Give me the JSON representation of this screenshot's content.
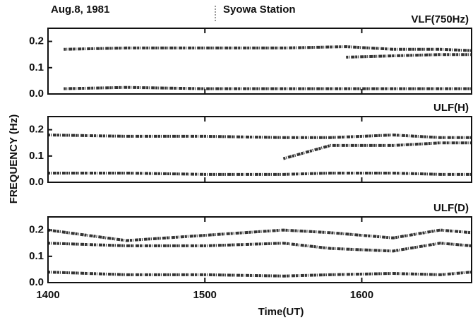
{
  "header": {
    "date": "Aug.8, 1981",
    "station": "Syowa Station"
  },
  "ylabel": "FREQUENCY (Hz)",
  "chart_data": [
    {
      "type": "line",
      "label": "VLF(750Hz)",
      "xlim": [
        1400,
        1670
      ],
      "xticks": [
        1400,
        1500,
        1600
      ],
      "ylim": [
        0,
        0.25
      ],
      "yticks": [
        {
          "value": 0,
          "label": "0.0"
        },
        {
          "value": 0.1,
          "label": "0.1"
        },
        {
          "value": 0.2,
          "label": "0.2"
        }
      ],
      "x": [
        1410,
        1450,
        1500,
        1550,
        1590,
        1620,
        1650,
        1670
      ],
      "series": [
        {
          "color": "#111111",
          "values": [
            0.17,
            0.175,
            0.175,
            0.175,
            0.18,
            0.17,
            0.17,
            0.165
          ]
        },
        {
          "color": "#111111",
          "values": [
            null,
            null,
            null,
            null,
            0.14,
            0.145,
            0.15,
            0.15
          ]
        },
        {
          "color": "#111111",
          "values": [
            0.02,
            0.025,
            0.02,
            0.02,
            0.02,
            0.02,
            0.02,
            0.02
          ]
        }
      ]
    },
    {
      "type": "line",
      "label": "ULF(H)",
      "xlim": [
        1400,
        1670
      ],
      "xticks": [
        1400,
        1500,
        1600
      ],
      "ylim": [
        0,
        0.25
      ],
      "yticks": [
        {
          "value": 0,
          "label": "0.0"
        },
        {
          "value": 0.1,
          "label": "0.1"
        },
        {
          "value": 0.2,
          "label": "0.2"
        }
      ],
      "x": [
        1400,
        1450,
        1500,
        1550,
        1580,
        1620,
        1650,
        1670
      ],
      "series": [
        {
          "color": "#111111",
          "values": [
            0.18,
            0.175,
            0.175,
            0.17,
            0.17,
            0.18,
            0.17,
            0.17
          ]
        },
        {
          "color": "#111111",
          "values": [
            null,
            null,
            null,
            0.09,
            0.14,
            0.14,
            0.15,
            0.15
          ]
        },
        {
          "color": "#111111",
          "values": [
            0.035,
            0.035,
            0.03,
            0.03,
            0.035,
            0.035,
            0.03,
            0.03
          ]
        }
      ]
    },
    {
      "type": "line",
      "label": "ULF(D)",
      "xlabel": "Time(UT)",
      "xlim": [
        1400,
        1670
      ],
      "xticks": [
        1400,
        1500,
        1600
      ],
      "ylim": [
        0,
        0.25
      ],
      "yticks": [
        {
          "value": 0,
          "label": "0.0"
        },
        {
          "value": 0.1,
          "label": "0.1"
        },
        {
          "value": 0.2,
          "label": "0.2"
        }
      ],
      "x": [
        1400,
        1450,
        1500,
        1550,
        1580,
        1620,
        1650,
        1670
      ],
      "series": [
        {
          "color": "#111111",
          "values": [
            0.2,
            0.16,
            0.18,
            0.2,
            0.19,
            0.17,
            0.2,
            0.19
          ]
        },
        {
          "color": "#111111",
          "values": [
            0.15,
            0.14,
            0.14,
            0.15,
            0.13,
            0.12,
            0.15,
            0.14
          ]
        },
        {
          "color": "#111111",
          "values": [
            0.04,
            0.03,
            0.03,
            0.025,
            0.03,
            0.035,
            0.03,
            0.04
          ]
        }
      ]
    }
  ]
}
